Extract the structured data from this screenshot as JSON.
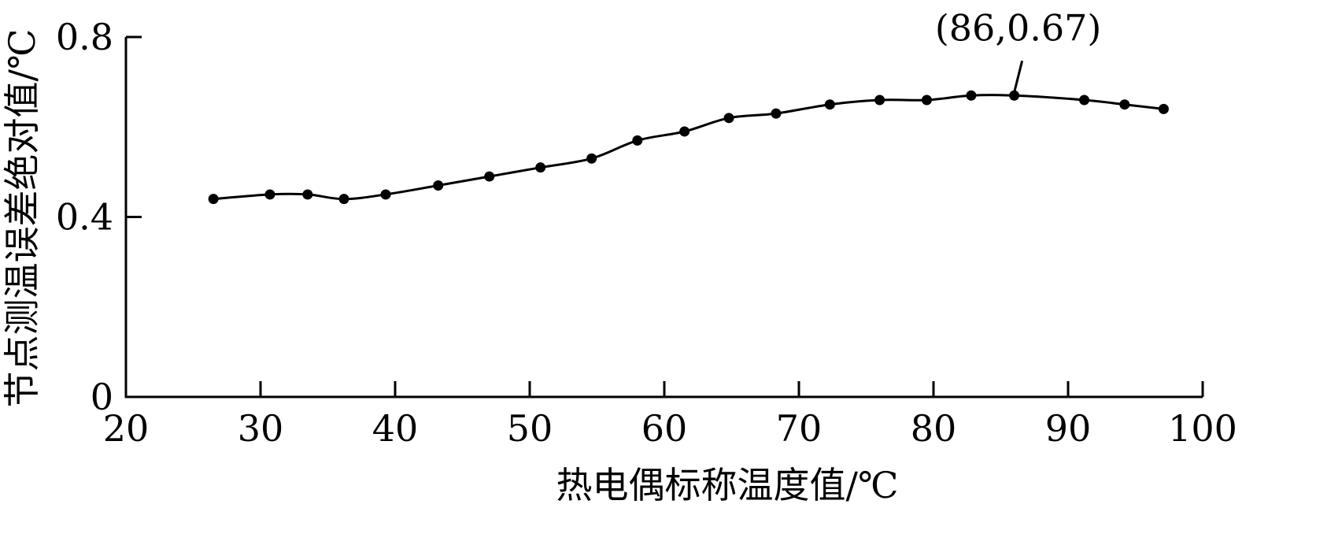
{
  "chart_data": {
    "type": "line",
    "title": "",
    "xlabel": "热电偶标称温度值/℃",
    "ylabel": "节点测温误差绝对值/℃",
    "xlim": [
      20,
      100
    ],
    "ylim": [
      0,
      0.8
    ],
    "xticks": [
      "20",
      "30",
      "40",
      "50",
      "60",
      "70",
      "80",
      "90",
      "100"
    ],
    "yticks": [
      "0",
      "0.4",
      "0.8"
    ],
    "grid": false,
    "series": [
      {
        "x": [
          26.5,
          30.7,
          33.5,
          36.2,
          39.3,
          43.2,
          47.0,
          50.8,
          54.6,
          58.0,
          61.5,
          64.8,
          68.3,
          72.3,
          76.0,
          79.5,
          82.8,
          86.0,
          91.2,
          94.2,
          97.1
        ],
        "y": [
          0.44,
          0.45,
          0.45,
          0.44,
          0.45,
          0.47,
          0.49,
          0.51,
          0.53,
          0.57,
          0.59,
          0.62,
          0.63,
          0.65,
          0.66,
          0.66,
          0.67,
          0.67,
          0.66,
          0.65,
          0.64
        ]
      }
    ],
    "annotations": [
      {
        "text": "(86,0.67)",
        "x": 86,
        "y": 0.67
      }
    ]
  }
}
